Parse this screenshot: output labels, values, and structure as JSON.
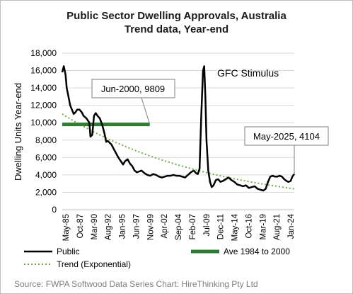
{
  "chart_data": {
    "type": "line",
    "title": "Public  Sector Dwelling Approvals, Australia",
    "subtitle": "Trend data, Year-end",
    "ylabel": "Dwelling Units Year-end",
    "xlabel": "",
    "ylim": [
      0,
      18000
    ],
    "ytick_labels": [
      "0",
      "2,000",
      "4,000",
      "6,000",
      "8,000",
      "10,000",
      "12,000",
      "14,000",
      "16,000",
      "18,000"
    ],
    "yticks": [
      0,
      2000,
      4000,
      6000,
      8000,
      10000,
      12000,
      14000,
      16000,
      18000
    ],
    "xlim": [
      1985.33,
      2025.33
    ],
    "xtick_labels": [
      "May-85",
      "Oct-87",
      "Mar-90",
      "Aug-92",
      "Jan-95",
      "Jun-97",
      "Nov-99",
      "Apr-02",
      "Sep-04",
      "Feb-07",
      "Jul-09",
      "Dec-11",
      "May-14",
      "Oct-16",
      "Mar-19",
      "Aug-21",
      "Jan-24"
    ],
    "grid": "horizontal",
    "legend_position": "bottom",
    "series": [
      {
        "name": "Public",
        "color": "#000000",
        "x": [
          1985.33,
          1985.6,
          1985.9,
          1986.1,
          1986.4,
          1986.7,
          1987.0,
          1987.3,
          1987.6,
          1987.9,
          1988.3,
          1988.7,
          1989.0,
          1989.5,
          1990.0,
          1990.2,
          1990.5,
          1990.8,
          1991.1,
          1991.4,
          1991.8,
          1992.2,
          1992.6,
          1992.9,
          1993.2,
          1993.5,
          1993.8,
          1994.2,
          1994.6,
          1995.0,
          1995.4,
          1995.8,
          1996.2,
          1996.6,
          1997.0,
          1997.4,
          1997.8,
          1998.2,
          1998.6,
          1999.0,
          1999.5,
          2000.0,
          2000.5,
          2001.0,
          2001.5,
          2002.0,
          2002.5,
          2003.0,
          2003.5,
          2004.0,
          2004.5,
          2005.0,
          2005.5,
          2006.0,
          2006.5,
          2007.0,
          2007.5,
          2008.0,
          2008.4,
          2008.7,
          2009.0,
          2009.3,
          2009.6,
          2009.8,
          2010.0,
          2010.2,
          2010.5,
          2010.8,
          2011.1,
          2011.4,
          2011.8,
          2012.2,
          2012.6,
          2013.0,
          2013.5,
          2014.0,
          2014.5,
          2015.0,
          2015.5,
          2016.0,
          2016.5,
          2017.0,
          2017.5,
          2018.0,
          2018.5,
          2019.0,
          2019.5,
          2020.0,
          2020.4,
          2020.8,
          2021.2,
          2021.6,
          2022.0,
          2022.4,
          2022.8,
          2023.2,
          2023.6,
          2024.0,
          2024.3,
          2024.7,
          2025.0,
          2025.33
        ],
        "y": [
          15800,
          16500,
          15500,
          14000,
          13000,
          12000,
          11500,
          11000,
          11200,
          11500,
          11500,
          11200,
          10800,
          10500,
          10000,
          8400,
          8600,
          10800,
          11100,
          10800,
          10500,
          9800,
          8800,
          7800,
          7900,
          7700,
          7500,
          7000,
          6500,
          6000,
          5600,
          5200,
          5600,
          5800,
          5300,
          5000,
          4500,
          4300,
          4400,
          4500,
          4200,
          4000,
          3900,
          4100,
          4000,
          3800,
          3700,
          3800,
          3900,
          3900,
          4000,
          3900,
          3900,
          3800,
          3700,
          4000,
          4300,
          4500,
          4200,
          4100,
          4700,
          11000,
          16000,
          16500,
          13000,
          8000,
          4500,
          3200,
          2600,
          2800,
          3400,
          3500,
          3200,
          3300,
          3500,
          3700,
          3400,
          3200,
          2900,
          2800,
          2700,
          2800,
          2500,
          2600,
          2700,
          2400,
          2300,
          2200,
          2400,
          3200,
          3800,
          3900,
          3800,
          3800,
          3900,
          3800,
          3500,
          3300,
          3200,
          3300,
          3800,
          4104
        ]
      },
      {
        "name": "Ave 1984 to 2000",
        "color": "#2e7d32",
        "x": [
          1985.33,
          2000.42
        ],
        "y": [
          9809,
          9809
        ]
      },
      {
        "name": "Trend (Exponential)",
        "color": "#70ad47",
        "style": "dotted",
        "x_range": [
          1985.33,
          2025.33
        ],
        "start": 11000,
        "end": 2400
      }
    ],
    "annotations": [
      {
        "text": "Jun-2000, 9809",
        "x": 2000.42,
        "y": 9809,
        "boxed": true
      },
      {
        "text": "GFC Stimulus",
        "x": 2009.7,
        "y": 16000,
        "boxed": false
      },
      {
        "text": "May-2025, 4104",
        "x": 2025.33,
        "y": 4104,
        "boxed": true
      }
    ]
  },
  "source": "Source:  FWPA Softwood Data Series Chart: HireThinking Pty Ltd"
}
